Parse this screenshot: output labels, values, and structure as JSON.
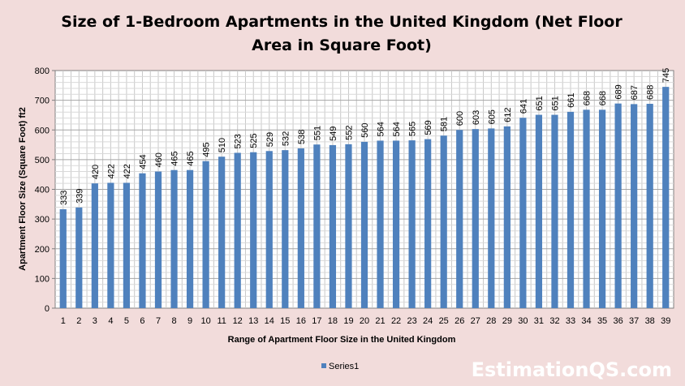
{
  "chart_data": {
    "type": "bar",
    "title": "Size of 1-Bedroom Apartments in the United Kingdom (Net Floor Area in Square Foot)",
    "title_lines": [
      "Size of 1-Bedroom Apartments in the United Kingdom (Net Floor",
      "Area in Square Foot)"
    ],
    "xlabel": "Range of Apartment Floor Size in the United Kingdom",
    "ylabel": "Apartment Floor Size (Square Foot) ft2",
    "categories": [
      "1",
      "2",
      "3",
      "4",
      "5",
      "6",
      "7",
      "8",
      "9",
      "10",
      "11",
      "12",
      "13",
      "14",
      "15",
      "16",
      "17",
      "18",
      "19",
      "20",
      "21",
      "22",
      "23",
      "24",
      "25",
      "26",
      "27",
      "28",
      "29",
      "30",
      "31",
      "32",
      "33",
      "34",
      "35",
      "36",
      "37",
      "38",
      "39"
    ],
    "series": [
      {
        "name": "Series1",
        "color": "#4f81bd",
        "values": [
          333,
          339,
          420,
          422,
          422,
          454,
          460,
          465,
          465,
          495,
          510,
          523,
          525,
          529,
          532,
          538,
          551,
          549,
          552,
          560,
          564,
          564,
          565,
          569,
          581,
          600,
          603,
          605,
          612,
          641,
          651,
          651,
          661,
          668,
          668,
          689,
          687,
          688,
          745
        ]
      }
    ],
    "ylim": [
      0,
      800
    ],
    "yticks": [
      0,
      100,
      200,
      300,
      400,
      500,
      600,
      700,
      800
    ],
    "grid": true,
    "legend_position": "bottom",
    "data_labels": true
  },
  "watermark": "EstimationQS.com"
}
